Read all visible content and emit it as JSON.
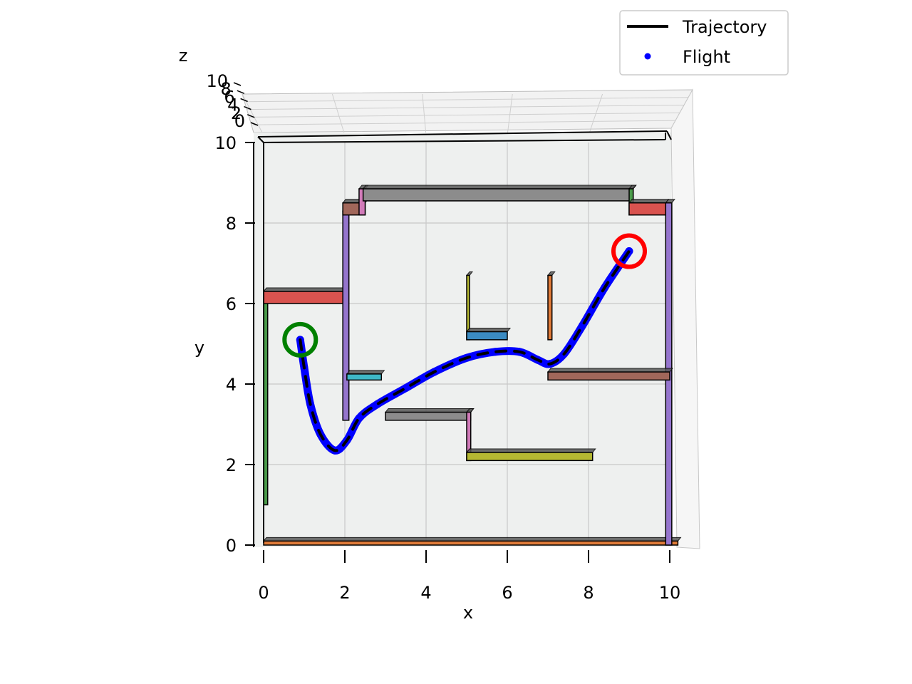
{
  "chart_data": {
    "type": "line",
    "projection": "3d-top-view",
    "xlabel": "x",
    "ylabel": "y",
    "zlabel": "z",
    "xlim": [
      0,
      10
    ],
    "ylim": [
      0,
      10
    ],
    "zlim": [
      0,
      10
    ],
    "x_ticks": [
      "0",
      "2",
      "4",
      "6",
      "8",
      "10"
    ],
    "y_ticks": [
      "0",
      "2",
      "4",
      "6",
      "8",
      "10"
    ],
    "z_ticks": [
      "0",
      "2",
      "4",
      "6",
      "8",
      "10"
    ],
    "grid": true,
    "legend_position": "top-right",
    "legend": [
      {
        "label": "Trajectory",
        "marker": "line",
        "color": "#000000"
      },
      {
        "label": "Flight",
        "marker": "dot",
        "color": "#0000ff"
      }
    ],
    "series": [
      {
        "name": "Trajectory",
        "color": "#000000",
        "style": "dashed",
        "x": [
          0.9,
          1.0,
          1.15,
          1.4,
          1.75,
          2.05,
          2.35,
          2.8,
          3.5,
          4.2,
          5.0,
          5.7,
          6.3,
          6.75,
          7.05,
          7.4,
          7.85,
          8.4,
          9.0
        ],
        "y": [
          5.1,
          4.4,
          3.5,
          2.75,
          2.35,
          2.6,
          3.15,
          3.5,
          3.9,
          4.3,
          4.65,
          4.8,
          4.8,
          4.6,
          4.5,
          4.75,
          5.45,
          6.4,
          7.3
        ]
      },
      {
        "name": "Flight",
        "color": "#0000ff",
        "style": "dots",
        "x": [
          0.9,
          1.0,
          1.15,
          1.4,
          1.75,
          2.05,
          2.35,
          2.8,
          3.5,
          4.2,
          5.0,
          5.7,
          6.3,
          6.75,
          7.05,
          7.4,
          7.85,
          8.4,
          9.0
        ],
        "y": [
          5.1,
          4.4,
          3.5,
          2.75,
          2.35,
          2.6,
          3.15,
          3.5,
          3.9,
          4.3,
          4.65,
          4.8,
          4.8,
          4.6,
          4.5,
          4.75,
          5.45,
          6.4,
          7.3
        ]
      }
    ],
    "start_marker": {
      "x": 0.9,
      "y": 5.1,
      "color": "#008000"
    },
    "goal_marker": {
      "x": 9.0,
      "y": 7.3,
      "color": "#ff0000"
    },
    "obstacles": [
      {
        "x": [
          0,
          10.2
        ],
        "y": [
          0,
          0.1
        ],
        "color": "#e07b39"
      },
      {
        "x": [
          0,
          0.1
        ],
        "y": [
          1,
          6.1
        ],
        "color": "#4a9b4a"
      },
      {
        "x": [
          0,
          2
        ],
        "y": [
          6,
          6.3
        ],
        "color": "#d9534f"
      },
      {
        "x": [
          1.95,
          2.1
        ],
        "y": [
          3.1,
          8.3
        ],
        "color": "#9575cd"
      },
      {
        "x": [
          1.95,
          2.5
        ],
        "y": [
          8.2,
          8.5
        ],
        "color": "#a1675a"
      },
      {
        "x": [
          2.35,
          2.5
        ],
        "y": [
          8.2,
          8.85
        ],
        "color": "#d17bb9"
      },
      {
        "x": [
          2.45,
          9.1
        ],
        "y": [
          8.55,
          8.85
        ],
        "color": "#8c8c8c"
      },
      {
        "x": [
          9.0,
          9.1
        ],
        "y": [
          8.2,
          8.85
        ],
        "color": "#4a9b4a"
      },
      {
        "x": [
          9.0,
          9.9
        ],
        "y": [
          8.2,
          8.5
        ],
        "color": "#d9534f"
      },
      {
        "x": [
          9.9,
          10.05
        ],
        "y": [
          0,
          8.5
        ],
        "color": "#9575cd"
      },
      {
        "x": [
          5.0,
          5.05
        ],
        "y": [
          5.1,
          6.7
        ],
        "color": "#b5b832"
      },
      {
        "x": [
          5.0,
          6.0
        ],
        "y": [
          5.1,
          5.3
        ],
        "color": "#3b8bc2"
      },
      {
        "x": [
          7.0,
          7.1
        ],
        "y": [
          5.1,
          6.7
        ],
        "color": "#e07b39"
      },
      {
        "x": [
          2.05,
          2.9
        ],
        "y": [
          4.1,
          4.25
        ],
        "color": "#3fb8c7"
      },
      {
        "x": [
          7.0,
          10.0
        ],
        "y": [
          4.1,
          4.3
        ],
        "color": "#a1675a"
      },
      {
        "x": [
          3.0,
          5.1
        ],
        "y": [
          3.1,
          3.3
        ],
        "color": "#8c8c8c"
      },
      {
        "x": [
          5.0,
          5.1
        ],
        "y": [
          2.1,
          3.3
        ],
        "color": "#d17bb9"
      },
      {
        "x": [
          5.0,
          8.1
        ],
        "y": [
          2.1,
          2.3
        ],
        "color": "#b5b832"
      }
    ]
  }
}
